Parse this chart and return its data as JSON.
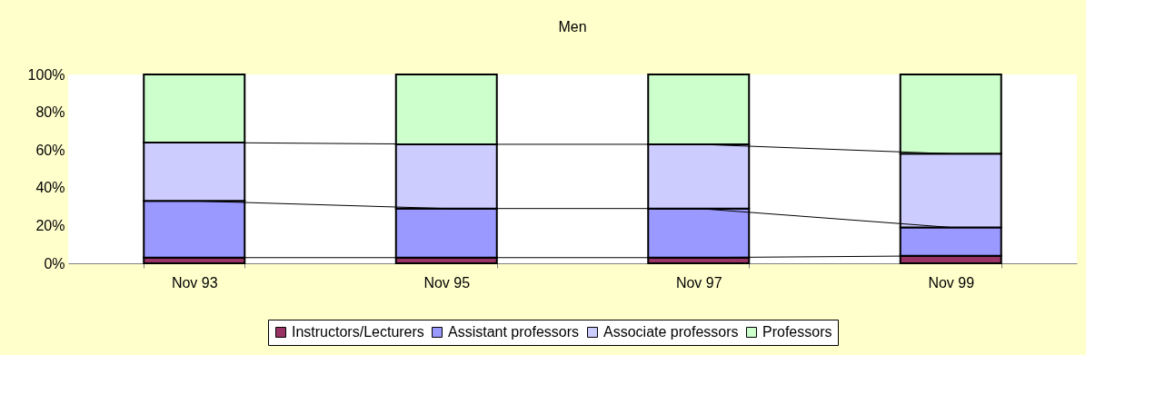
{
  "chart_data": {
    "type": "bar",
    "title": "Men",
    "stacked": true,
    "categories": [
      "Nov 93",
      "Nov 95",
      "Nov 97",
      "Nov 99"
    ],
    "series": [
      {
        "name": "Instructors/Lecturers",
        "color": "#993366",
        "values": [
          3,
          3,
          3,
          4
        ]
      },
      {
        "name": "Assistant professors",
        "color": "#9999ff",
        "values": [
          30,
          26,
          26,
          15
        ]
      },
      {
        "name": "Associate professors",
        "color": "#ccccff",
        "values": [
          31,
          34,
          34,
          39
        ]
      },
      {
        "name": "Professors",
        "color": "#ccffcc",
        "values": [
          36,
          37,
          37,
          42
        ]
      }
    ],
    "ylim": [
      0,
      100
    ],
    "yticks": [
      {
        "value": 0,
        "label": "0%"
      },
      {
        "value": 20,
        "label": "20%"
      },
      {
        "value": 40,
        "label": "40%"
      },
      {
        "value": 60,
        "label": "60%"
      },
      {
        "value": 80,
        "label": "80%"
      },
      {
        "value": 100,
        "label": "100%"
      }
    ],
    "grid": false,
    "legend": "bottom"
  }
}
